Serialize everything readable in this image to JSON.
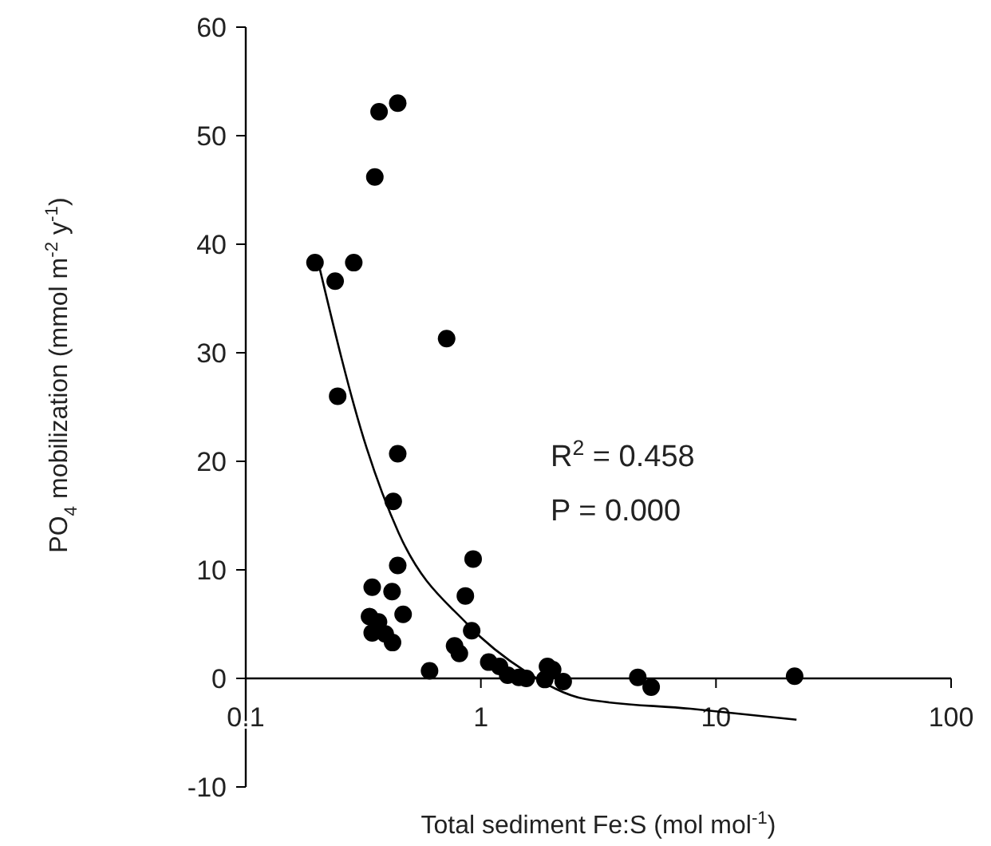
{
  "chart_data": {
    "type": "scatter",
    "xlabel": "Total sediment Fe:S (mol mol$^{-1}$)",
    "ylabel": "PO$_{4}$ mobilization (mmol m$^{-2}$ y$^{-1}$)",
    "log": "x",
    "xlim": [
      0.1,
      100
    ],
    "xticks": [
      0.1,
      1,
      10,
      100
    ],
    "ylim": [
      -10,
      60
    ],
    "yticks": [
      -10,
      0,
      10,
      20,
      30,
      40,
      50,
      60
    ],
    "grid": false,
    "marker": "circle",
    "annotations": [
      "R$^{2}$ = 0.458",
      "P = 0.000"
    ],
    "series": [
      {
        "color": "#000000",
        "x": [
          0.443,
          0.369,
          0.354,
          0.197,
          0.288,
          0.24,
          0.715,
          0.246,
          0.443,
          0.424,
          0.927,
          0.443,
          0.345,
          0.419,
          0.859,
          0.336,
          0.467,
          0.367,
          0.345,
          0.914,
          0.392,
          0.421,
          0.773,
          0.81,
          0.605,
          1.08,
          1.2,
          1.3,
          1.45,
          1.56,
          1.92,
          2.02,
          1.87,
          2.24,
          4.65,
          5.3,
          21.6
        ],
        "values": [
          53.0,
          52.2,
          46.2,
          38.3,
          38.3,
          36.6,
          31.3,
          26.0,
          20.7,
          16.3,
          11.0,
          10.4,
          8.4,
          8.0,
          7.6,
          5.7,
          5.9,
          5.2,
          4.2,
          4.4,
          4.1,
          3.3,
          3.0,
          2.3,
          0.7,
          1.5,
          1.1,
          0.3,
          0.1,
          0,
          1.1,
          0.8,
          -0.1,
          -0.3,
          0.1,
          -0.8,
          0.2
        ]
      },
      {
        "type": "line",
        "color": "#000000",
        "marker": "none",
        "x": [
          0.2,
          0.327,
          0.447,
          0.876,
          1.56,
          2.77,
          7.8,
          22
        ],
        "values": [
          39,
          21.2,
          13.4,
          5,
          0.6,
          -1.9,
          -2.8,
          -3.8
        ]
      }
    ]
  }
}
